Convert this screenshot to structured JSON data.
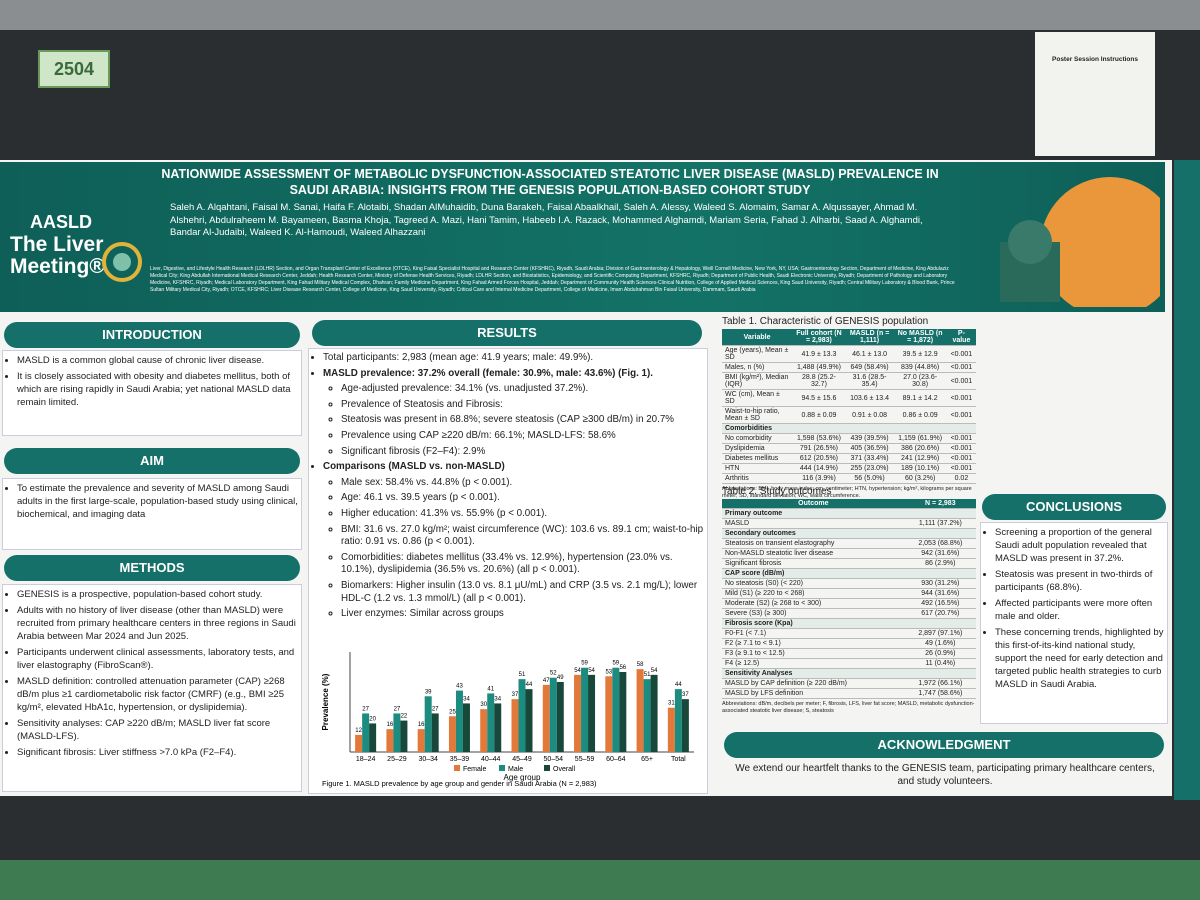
{
  "board": {
    "number": "2504",
    "notice": "Poster Session Instructions"
  },
  "header": {
    "logo": "AASLD",
    "meeting": "The Liver Meeting®",
    "title": "NATIONWIDE ASSESSMENT OF METABOLIC DYSFUNCTION-ASSOCIATED STEATOTIC LIVER DISEASE (MASLD) PREVALENCE IN SAUDI ARABIA: INSIGHTS FROM THE GENESIS POPULATION-BASED COHORT STUDY",
    "authors": "Saleh A. Alqahtani, Faisal M. Sanai, Haifa F. Alotaibi, Shadan AlMuhaidib, Duna Barakeh, Faisal Abaalkhail, Saleh A. Alessy, Waleed S. Alomaim, Samar A. Alqussayer, Ahmad M. Alshehri, Abdulraheem M. Bayameen, Basma Khoja, Tagreed A. Mazi, Hani Tamim, Habeeb I.A. Razack, Mohammed Alghamdi, Mariam Seria, Fahad J. Alharbi, Saad A. Alghamdi, Bandar Al-Judaibi, Waleed K. Al-Hamoudi, Waleed Alhazzani",
    "affiliations": "Liver, Digestive, and Lifestyle Health Research (LDLHR) Section, and Organ Transplant Center of Excellence (OTCE), King Faisal Specialist Hospital and Research Center (KFSHRC), Riyadh, Saudi Arabia; Division of Gastroenterology & Hepatology, Weill Cornell Medicine, New York, NY, USA; Gastroenterology Section, Department of Medicine, King Abdulaziz Medical City; King Abdullah International Medical Research Center, Jeddah; Health Research Center, Ministry of Defense Health Services, Riyadh; LDLHR Section, and Biostatistics, Epidemiology, and Scientific Computing Department, KFSHRC, Riyadh; Department of Public Health, Saudi Electronic University, Riyadh; Department of Pathology and Laboratory Medicine, KFSHRC, Riyadh; Medical Laboratory Department, King Fahad Military Medical Complex, Dhahran; Family Medicine Department, King Fahad Armed Forces Hospital, Jeddah; Department of Community Health Sciences-Clinical Nutrition, College of Applied Medical Sciences, King Saud University, Riyadh; Central Military Laboratory & Blood Bank, Prince Sultan Military Medical City, Riyadh; OTCE, KFSHRC; Liver Disease Research Center, College of Medicine, King Saud University, Riyadh; Critical Care and Internal Medicine Department, College of Medicine, Imam Abdulrahman Bin Faisal University, Dammam, Saudi Arabia"
  },
  "introduction": {
    "heading": "INTRODUCTION",
    "items": [
      "MASLD is a common global cause of chronic liver disease.",
      "It is closely associated with obesity and diabetes mellitus, both of which are rising rapidly in Saudi Arabia; yet national MASLD data remain limited."
    ]
  },
  "aim": {
    "heading": "AIM",
    "items": [
      "To estimate the prevalence and severity of MASLD among Saudi adults in the first large-scale, population-based study using clinical, biochemical, and imaging data"
    ]
  },
  "methods": {
    "heading": "METHODS",
    "items": [
      "GENESIS is a prospective, population-based cohort study.",
      "Adults with no history of liver disease (other than MASLD) were recruited from primary healthcare centers in three regions in Saudi Arabia between Mar 2024 and Jun 2025.",
      "Participants underwent clinical assessments, laboratory tests, and liver elastography (FibroScan®).",
      "MASLD definition: controlled attenuation parameter (CAP) ≥268 dB/m plus ≥1 cardiometabolic risk factor (CMRF) (e.g., BMI ≥25 kg/m², elevated HbA1c, hypertension, or dyslipidemia).",
      "Sensitivity analyses: CAP ≥220 dB/m; MASLD liver fat score (MASLD-LFS).",
      "Significant fibrosis: Liver stiffness >7.0 kPa (F2–F4)."
    ]
  },
  "results": {
    "heading": "RESULTS",
    "items": [
      "Total participants: 2,983 (mean age: 41.9 years; male: 49.9%).",
      {
        "heading": "MASLD prevalence: 37.2% overall (female: 30.9%, male: 43.6%) (Fig. 1).",
        "items": [
          "Age-adjusted prevalence: 34.1% (vs. unadjusted 37.2%).",
          "Prevalence of Steatosis and Fibrosis:"
        ]
      },
      {
        "heading": "",
        "items": [
          "Steatosis was present in 68.8%; severe steatosis (CAP ≥300 dB/m) in 20.7%",
          "Prevalence using CAP ≥220 dB/m: 66.1%; MASLD-LFS: 58.6%",
          "Significant fibrosis (F2–F4): 2.9%"
        ]
      },
      {
        "heading": "Comparisons (MASLD vs. non-MASLD)",
        "items": [
          "Male sex: 58.4% vs. 44.8% (p < 0.001).",
          "Age: 46.1 vs. 39.5 years (p < 0.001).",
          "Higher education: 41.3% vs. 55.9% (p < 0.001).",
          "BMI: 31.6 vs. 27.0 kg/m²; waist circumference (WC): 103.6 vs. 89.1 cm; waist-to-hip ratio: 0.91 vs. 0.86 (p < 0.001).",
          "Comorbidities: diabetes mellitus (33.4% vs. 12.9%), hypertension (23.0% vs. 10.1%), dyslipidemia (36.5% vs. 20.6%) (all p < 0.001).",
          "Biomarkers: Higher insulin (13.0 vs. 8.1 μU/mL) and CRP (3.5 vs. 2.1 mg/L); lower HDL-C (1.2 vs. 1.3 mmol/L) (all p < 0.001).",
          "Liver enzymes: Similar across groups"
        ]
      }
    ]
  },
  "chart_data": {
    "type": "bar",
    "caption": "Figure 1. MASLD prevalence by age group and gender in Saudi Arabia (N = 2,983)",
    "ylabel": "Prevalence (%)",
    "xlabel": "Age group",
    "categories": [
      "18–24",
      "25–29",
      "30–34",
      "35–39",
      "40–44",
      "45–49",
      "50–54",
      "55–59",
      "60–64",
      "65+",
      "Total"
    ],
    "ylim": [
      0,
      70
    ],
    "series": [
      {
        "name": "Female",
        "color": "#e2793a",
        "values": [
          12,
          16,
          16,
          25,
          30,
          37,
          47,
          54,
          53,
          58,
          31
        ]
      },
      {
        "name": "Male",
        "color": "#1d8c80",
        "values": [
          27,
          27,
          39,
          43,
          41,
          51,
          52,
          59,
          59,
          51,
          44
        ]
      },
      {
        "name": "Overall",
        "color": "#17483a",
        "values": [
          20,
          22,
          27,
          34,
          34,
          44,
          49,
          54,
          56,
          54,
          37
        ]
      }
    ]
  },
  "table1": {
    "caption": "Table 1. Characteristic of GENESIS population",
    "columns": [
      "Variable",
      "Full cohort (N = 2,983)",
      "MASLD (n = 1,111)",
      "No MASLD (n = 1,872)",
      "P-value"
    ],
    "rows": [
      [
        "Age (years), Mean ± SD",
        "41.9 ± 13.3",
        "46.1 ± 13.0",
        "39.5 ± 12.9",
        "<0.001"
      ],
      [
        "Males, n (%)",
        "1,488 (49.9%)",
        "649 (58.4%)",
        "839 (44.8%)",
        "<0.001"
      ],
      [
        "BMI (kg/m²), Median (IQR)",
        "28.8 (25.2-32.7)",
        "31.6 (28.5-35.4)",
        "27.0 (23.6-30.8)",
        "<0.001"
      ],
      [
        "WC (cm), Mean ± SD",
        "94.5 ± 15.6",
        "103.6 ± 13.4",
        "89.1 ± 14.2",
        "<0.001"
      ],
      [
        "Waist-to-hip ratio, Mean ± SD",
        "0.88 ± 0.09",
        "0.91 ± 0.08",
        "0.86 ± 0.09",
        "<0.001"
      ],
      [
        "Comorbidities"
      ],
      [
        "No comorbidity",
        "1,598 (53.6%)",
        "439 (39.5%)",
        "1,159 (61.9%)",
        "<0.001"
      ],
      [
        "Dyslipidemia",
        "791 (26.5%)",
        "405 (36.5%)",
        "386 (20.6%)",
        "<0.001"
      ],
      [
        "Diabetes mellitus",
        "612 (20.5%)",
        "371 (33.4%)",
        "241 (12.9%)",
        "<0.001"
      ],
      [
        "HTN",
        "444 (14.9%)",
        "255 (23.0%)",
        "189 (10.1%)",
        "<0.001"
      ],
      [
        "Arthritis",
        "116 (3.9%)",
        "56 (5.0%)",
        "60 (3.2%)",
        "0.02"
      ]
    ],
    "note": "Abbreviations: BMI, body mass index; cm, centimeter; HTN, hypertension; kg/m², kilograms per square meter; SD, standard deviation; WC, waist circumference."
  },
  "table2": {
    "caption": "Table 2. Study outcomes",
    "columns": [
      "Outcome",
      "N = 2,983"
    ],
    "rows": [
      [
        "Primary outcome"
      ],
      [
        "MASLD",
        "1,111 (37.2%)"
      ],
      [
        "Secondary outcomes"
      ],
      [
        "Steatosis on transient elastography",
        "2,053 (68.8%)"
      ],
      [
        "Non-MASLD steatotic liver disease",
        "942 (31.6%)"
      ],
      [
        "Significant fibrosis",
        "86 (2.9%)"
      ],
      [
        "CAP score (dB/m)"
      ],
      [
        "No steatosis (S0) (< 220)",
        "930 (31.2%)"
      ],
      [
        "Mild (S1) (≥ 220 to < 268)",
        "944 (31.6%)"
      ],
      [
        "Moderate (S2) (≥ 268 to < 300)",
        "492 (16.5%)"
      ],
      [
        "Severe (S3) (≥ 300)",
        "617 (20.7%)"
      ],
      [
        "Fibrosis score (Kpa)"
      ],
      [
        "F0-F1 (< 7.1)",
        "2,897 (97.1%)"
      ],
      [
        "F2 (≥ 7.1 to < 9.1)",
        "49 (1.6%)"
      ],
      [
        "F3 (≥ 9.1 to < 12.5)",
        "26 (0.9%)"
      ],
      [
        "F4 (≥ 12.5)",
        "11 (0.4%)"
      ],
      [
        "Sensitivity Analyses"
      ],
      [
        "MASLD by CAP definition (≥ 220 dB/m)",
        "1,972 (66.1%)"
      ],
      [
        "MASLD by LFS definition",
        "1,747 (58.6%)"
      ]
    ],
    "note": "Abbreviations: dB/m, decibels per meter; F, fibrosis, LFS, liver fat score; MASLD, metabolic dysfunction-associated steatotic liver disease; S, steatosis"
  },
  "conclusions": {
    "heading": "CONCLUSIONS",
    "items": [
      "Screening a proportion of the general Saudi adult population revealed that MASLD was present in 37.2%.",
      "Steatosis was present in two-thirds of participants (68.8%).",
      "Affected participants were more often male and older.",
      "These concerning trends, highlighted by this first-of-its-kind national study, support the need for early detection and targeted public health strategies to curb MASLD in Saudi Arabia."
    ]
  },
  "acknowledgment": {
    "heading": "ACKNOWLEDGMENT",
    "text": "We extend our heartfelt thanks to the GENESIS team, participating primary healthcare centers, and study volunteers."
  }
}
